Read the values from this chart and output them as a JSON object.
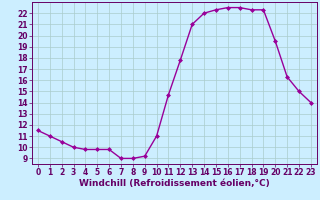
{
  "x": [
    0,
    1,
    2,
    3,
    4,
    5,
    6,
    7,
    8,
    9,
    10,
    11,
    12,
    13,
    14,
    15,
    16,
    17,
    18,
    19,
    20,
    21,
    22,
    23
  ],
  "y": [
    11.5,
    11.0,
    10.5,
    10.0,
    9.8,
    9.8,
    9.8,
    9.0,
    9.0,
    9.2,
    11.0,
    14.7,
    17.8,
    21.0,
    22.0,
    22.3,
    22.5,
    22.5,
    22.3,
    22.3,
    19.5,
    16.3,
    15.0,
    14.0
  ],
  "line_color": "#990099",
  "marker": "D",
  "marker_size": 2.0,
  "bg_color": "#cceeff",
  "grid_color": "#aacccc",
  "xlabel": "Windchill (Refroidissement éolien,°C)",
  "xlabel_color": "#660066",
  "ylim": [
    8.5,
    23.0
  ],
  "xlim": [
    -0.5,
    23.5
  ],
  "yticks": [
    9,
    10,
    11,
    12,
    13,
    14,
    15,
    16,
    17,
    18,
    19,
    20,
    21,
    22
  ],
  "xticks": [
    0,
    1,
    2,
    3,
    4,
    5,
    6,
    7,
    8,
    9,
    10,
    11,
    12,
    13,
    14,
    15,
    16,
    17,
    18,
    19,
    20,
    21,
    22,
    23
  ],
  "tick_color": "#660066",
  "tick_fontsize": 5.5,
  "xlabel_fontsize": 6.5,
  "line_width": 1.0
}
